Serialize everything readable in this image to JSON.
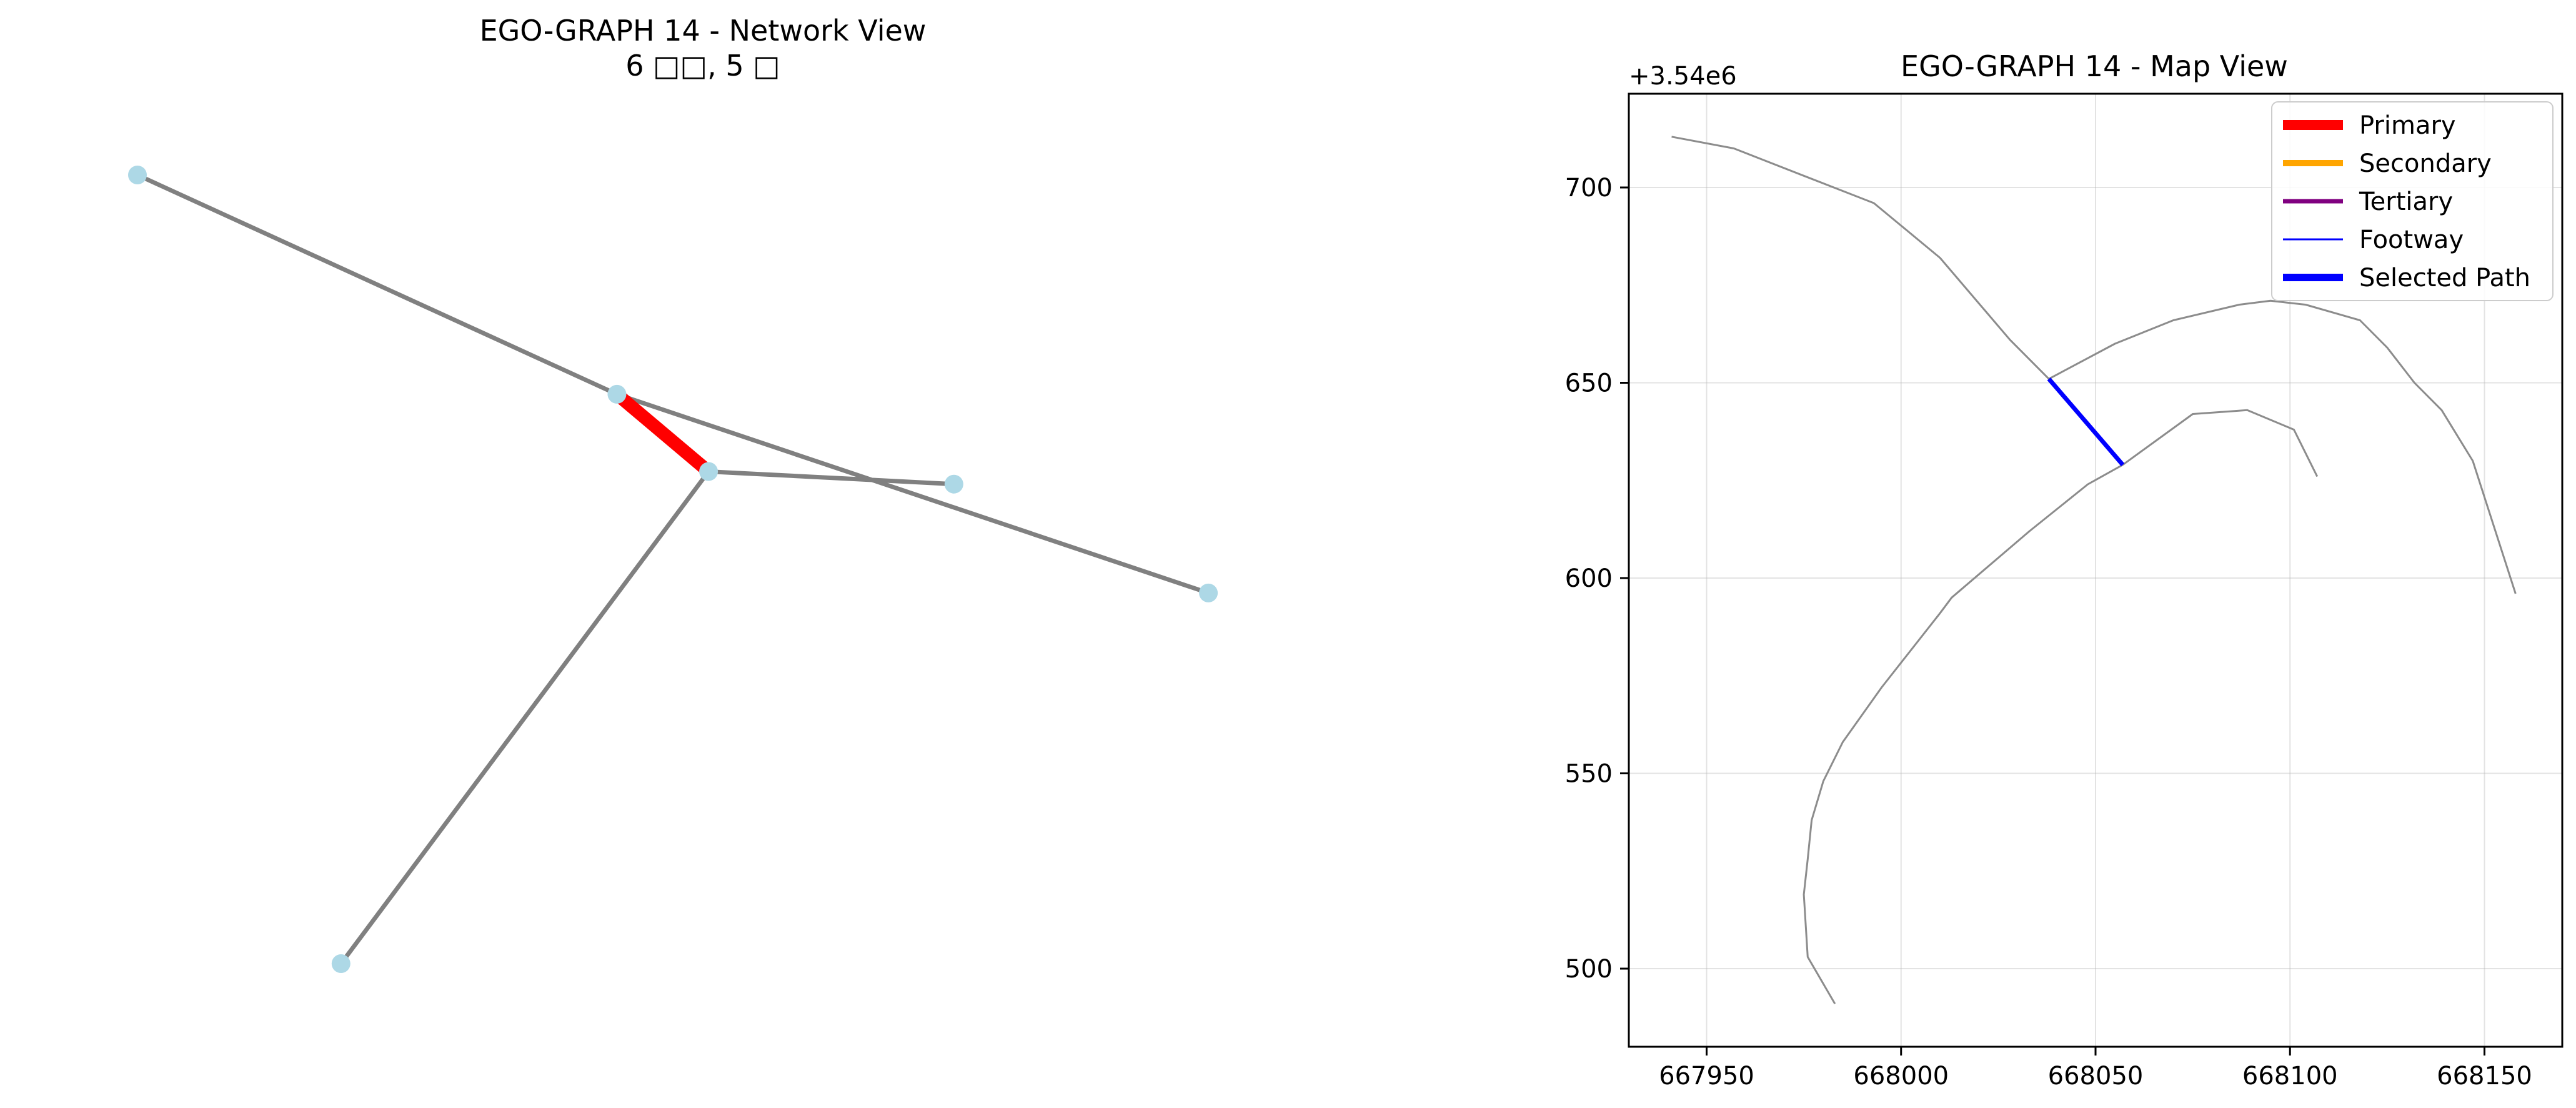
{
  "chart_data": [
    {
      "type": "network",
      "title": "EGO-GRAPH 14 - Network View",
      "subtitle": "6 □□, 5 □",
      "node_color": "#add8e6",
      "edge_color": "#808080",
      "highlight_color": "#ff0000",
      "nodes": [
        {
          "id": "a",
          "x": 0.0,
          "y": 0.0
        },
        {
          "id": "b",
          "x": 0.424,
          "y": 0.278
        },
        {
          "id": "c",
          "x": 0.505,
          "y": 0.376
        },
        {
          "id": "d",
          "x": 0.722,
          "y": 0.392
        },
        {
          "id": "e",
          "x": 0.947,
          "y": 0.53
        },
        {
          "id": "f",
          "x": 0.18,
          "y": 1.0
        }
      ],
      "edges": [
        {
          "from": "a",
          "to": "b",
          "highlight": false
        },
        {
          "from": "b",
          "to": "e",
          "highlight": false
        },
        {
          "from": "b",
          "to": "c",
          "highlight": true
        },
        {
          "from": "c",
          "to": "d",
          "highlight": false
        },
        {
          "from": "c",
          "to": "f",
          "highlight": false
        }
      ]
    },
    {
      "type": "line",
      "title": "EGO-GRAPH 14 - Map View",
      "y_offset_label": "+3.54e6",
      "xlim": [
        667930,
        668170
      ],
      "ylim": [
        480,
        724
      ],
      "xticks": [
        667950,
        668000,
        668050,
        668100,
        668150
      ],
      "yticks": [
        500,
        550,
        600,
        650,
        700
      ],
      "grid": true,
      "road_color": "#8c8c8c",
      "legend_position": "top-right",
      "legend": [
        {
          "label": "Primary",
          "color": "#ff0000",
          "width": 16
        },
        {
          "label": "Secondary",
          "color": "#ffa500",
          "width": 10
        },
        {
          "label": "Tertiary",
          "color": "#800080",
          "width": 7
        },
        {
          "label": "Footway",
          "color": "#0000ff",
          "width": 3
        },
        {
          "label": "Selected Path",
          "color": "#0000ff",
          "width": 12
        }
      ],
      "roads": [
        {
          "points": [
            [
              667941,
              713
            ],
            [
              667957,
              710
            ],
            [
              667975,
              703
            ],
            [
              667993,
              696
            ],
            [
              668010,
              682
            ],
            [
              668028,
              661
            ],
            [
              668038,
              651
            ]
          ]
        },
        {
          "points": [
            [
              668038,
              651
            ],
            [
              668055,
              660
            ],
            [
              668070,
              666
            ],
            [
              668087,
              670
            ],
            [
              668095,
              671
            ],
            [
              668104,
              670
            ],
            [
              668118,
              666
            ],
            [
              668125,
              659
            ],
            [
              668132,
              650
            ],
            [
              668139,
              643
            ],
            [
              668147,
              630
            ],
            [
              668158,
              596
            ]
          ]
        },
        {
          "points": [
            [
              668057,
              629
            ],
            [
              668048,
              624
            ],
            [
              668033,
              612
            ],
            [
              668013,
              595
            ],
            [
              668010,
              591
            ],
            [
              667995,
              572
            ],
            [
              667985,
              558
            ],
            [
              667980,
              548
            ],
            [
              667977,
              538
            ],
            [
              667976,
              528
            ],
            [
              667975,
              519
            ],
            [
              667976,
              503
            ],
            [
              667983,
              491
            ]
          ]
        },
        {
          "points": [
            [
              668057,
              629
            ],
            [
              668075,
              642
            ],
            [
              668089,
              643
            ],
            [
              668101,
              638
            ],
            [
              668107,
              626
            ]
          ]
        }
      ],
      "selected_path": [
        [
          668038,
          651
        ],
        [
          668057,
          629
        ]
      ]
    }
  ]
}
